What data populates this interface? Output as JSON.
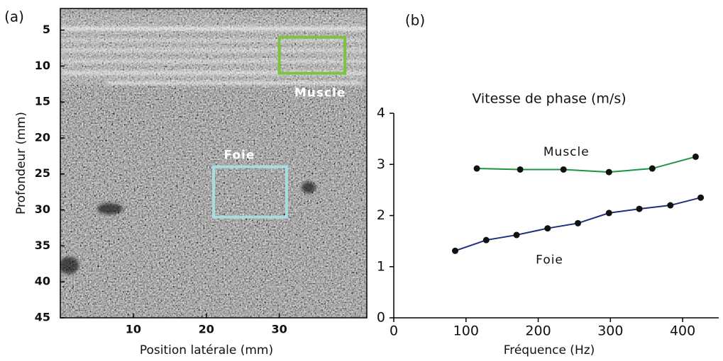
{
  "chart_data": [
    {
      "type": "image",
      "panel": "(a)",
      "x_label": "Position latérale (mm)",
      "y_label": "Profondeur (mm)",
      "xlim": [
        0,
        42
      ],
      "xticks": [
        10,
        20,
        30
      ],
      "ylim": [
        2,
        45
      ],
      "yticks": [
        5,
        10,
        15,
        20,
        25,
        30,
        35,
        40,
        45
      ],
      "y_inverted": true,
      "regions": [
        {
          "name": "Muscle",
          "color": "#7dc242",
          "x": [
            30,
            39
          ],
          "y": [
            6,
            11
          ]
        },
        {
          "name": "Foie",
          "color": "#a8dde0",
          "x": [
            21,
            31
          ],
          "y": [
            24,
            31
          ]
        }
      ]
    },
    {
      "type": "line",
      "panel": "(b)",
      "title": "Vitesse de phase (m/s)",
      "x_label": "Fréquence (Hz)",
      "xlim": [
        0,
        450
      ],
      "xticks": [
        0,
        100,
        200,
        300,
        400
      ],
      "ylim": [
        0,
        4
      ],
      "yticks": [
        0,
        1,
        2,
        3,
        4
      ],
      "series": [
        {
          "name": "Muscle",
          "color": "#1a9641",
          "x": [
            115,
            175,
            235,
            298,
            358,
            418
          ],
          "values": [
            2.92,
            2.9,
            2.9,
            2.85,
            2.92,
            3.15
          ]
        },
        {
          "name": "Foie",
          "color": "#1f2f7a",
          "x": [
            85,
            128,
            170,
            213,
            255,
            298,
            340,
            383,
            425
          ],
          "values": [
            1.31,
            1.52,
            1.62,
            1.75,
            1.85,
            2.05,
            2.13,
            2.2,
            2.35
          ]
        }
      ]
    }
  ]
}
